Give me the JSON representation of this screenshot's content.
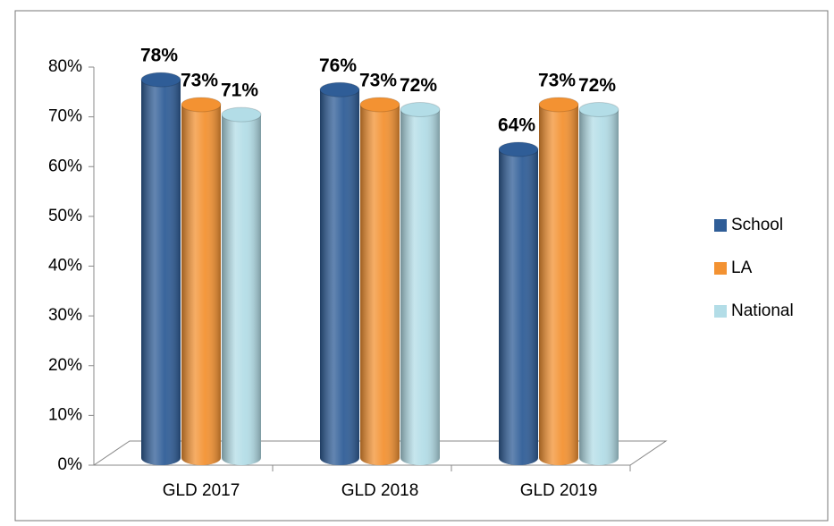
{
  "chart_data": {
    "type": "bar",
    "categories": [
      "GLD 2017",
      "GLD 2018",
      "GLD 2019"
    ],
    "series": [
      {
        "name": "School",
        "color": "#2f5d97",
        "values": [
          78,
          76,
          64
        ],
        "value_labels": [
          "78%",
          "76%",
          "64%"
        ]
      },
      {
        "name": "LA",
        "color": "#f39232",
        "values": [
          73,
          73,
          73
        ],
        "value_labels": [
          "73%",
          "73%",
          "73%"
        ]
      },
      {
        "name": "National",
        "color": "#b3dde7",
        "values": [
          71,
          72,
          72
        ],
        "value_labels": [
          "71%",
          "72%",
          "72%"
        ]
      }
    ],
    "ylim": [
      0,
      80
    ],
    "yticks": [
      {
        "value": 0,
        "label": "0%"
      },
      {
        "value": 10,
        "label": "10%"
      },
      {
        "value": 20,
        "label": "20%"
      },
      {
        "value": 30,
        "label": "30%"
      },
      {
        "value": 40,
        "label": "40%"
      },
      {
        "value": 50,
        "label": "50%"
      },
      {
        "value": 60,
        "label": "60%"
      },
      {
        "value": 70,
        "label": "70%"
      },
      {
        "value": 80,
        "label": "80%"
      }
    ],
    "legend": "right",
    "grid": false
  }
}
